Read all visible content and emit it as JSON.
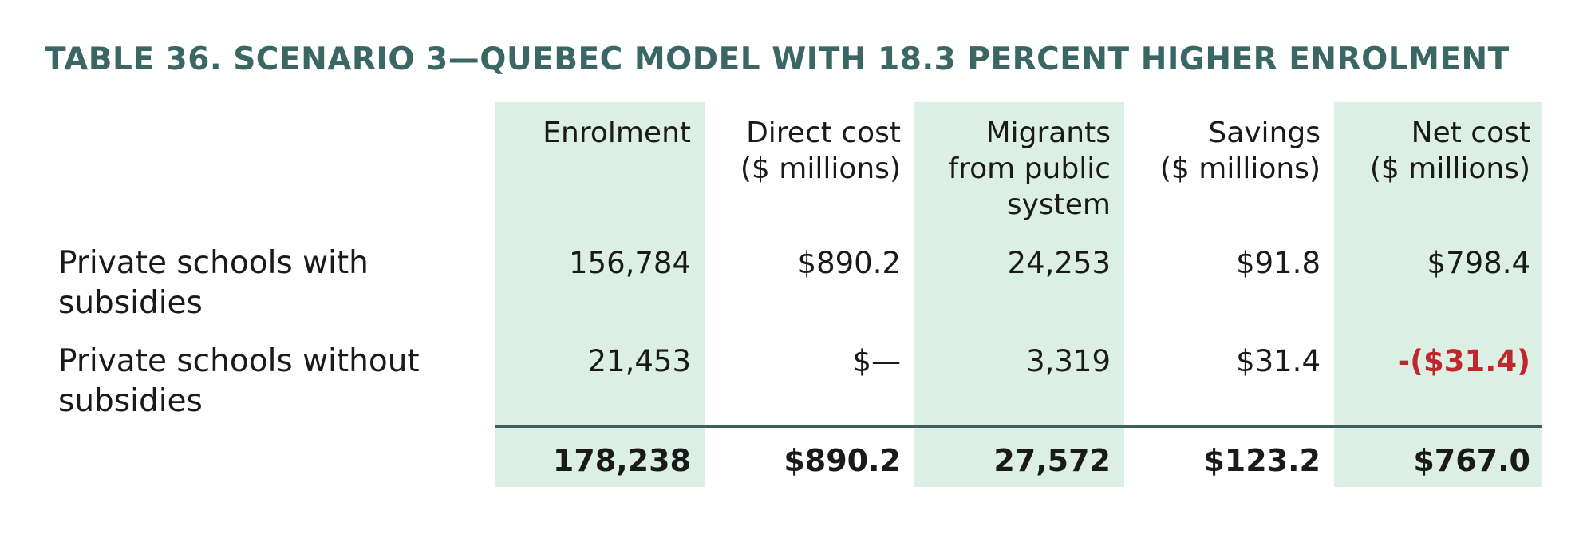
{
  "title": "TABLE 36. SCENARIO 3—QUEBEC MODEL WITH 18.3 PERCENT HIGHER ENROLMENT",
  "columns": [
    {
      "line1": "Enrolment",
      "line2": "",
      "line3": ""
    },
    {
      "line1": "Direct cost",
      "line2": "($ millions)",
      "line3": ""
    },
    {
      "line1": "Migrants",
      "line2": "from public",
      "line3": "system"
    },
    {
      "line1": "Savings",
      "line2": "($ millions)",
      "line3": ""
    },
    {
      "line1": "Net cost",
      "line2": "($ millions)",
      "line3": ""
    }
  ],
  "rows": [
    {
      "label_line1": "Private schools with",
      "label_line2": "subsidies",
      "cells": [
        "156,784",
        "$890.2",
        "24,253",
        "$91.8",
        "$798.4"
      ]
    },
    {
      "label_line1": "Private schools without",
      "label_line2": "subsidies",
      "cells": [
        "21,453",
        "$—",
        "3,319",
        "$31.4",
        "-($31.4)"
      ]
    }
  ],
  "totals": [
    "178,238",
    "$890.2",
    "27,572",
    "$123.2",
    "$767.0"
  ],
  "colors": {
    "title": "#3a6663",
    "shade": "#dcefe4",
    "rule": "#3d5f5f",
    "negative": "#c0272d"
  }
}
